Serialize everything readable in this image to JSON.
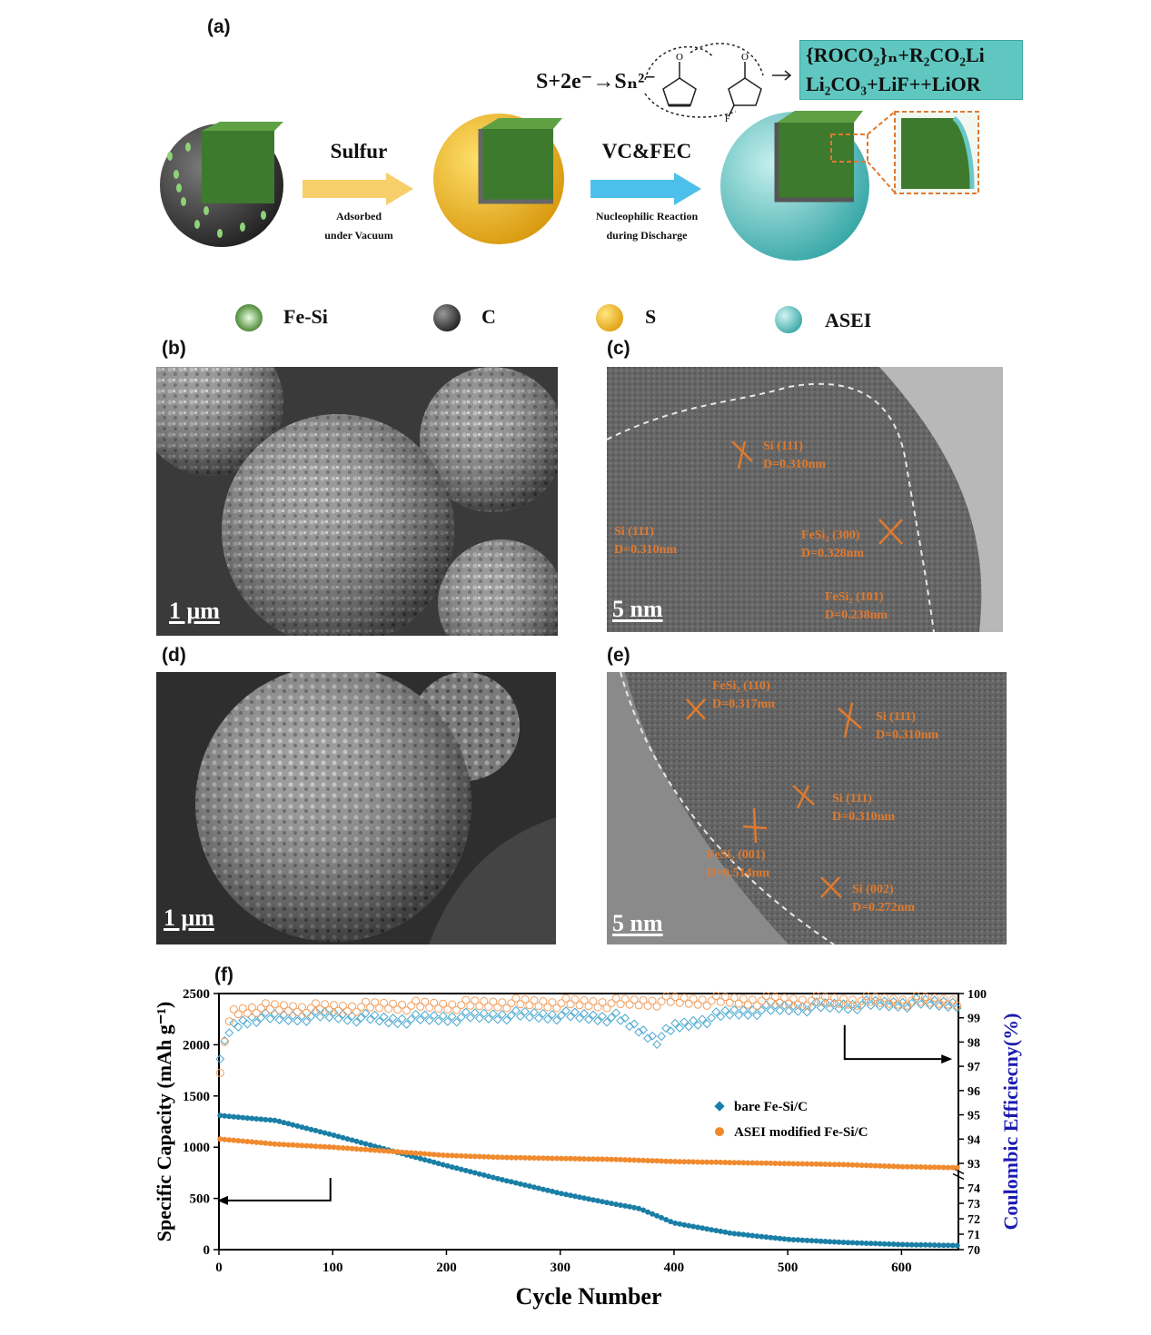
{
  "panels": {
    "a": "(a)",
    "b": "(b)",
    "c": "(c)",
    "d": "(d)",
    "e": "(e)",
    "f": "(f)"
  },
  "schematic": {
    "reaction_left": "S+2e⁻→Sₙ²⁻",
    "products_line1": "{ROCO₂}ₙ+R₂CO₂Li",
    "products_line2": "Li₂CO₃+LiF++LiOR",
    "arrow1_label": "Sulfur",
    "arrow1_sub1": "Adsorbed",
    "arrow1_sub2": "under Vacuum",
    "arrow2_label": "VC&FEC",
    "arrow2_sub1": "Nucleophilic Reaction",
    "arrow2_sub2": "during Discharge",
    "colors": {
      "carbon": "#3f3f3f",
      "sulfur": "#f2b824",
      "asei": "#6cc8c8",
      "fesi": "#4f8a3a",
      "arrow1": "#f7cf6a",
      "arrow2": "#4cc0ea"
    }
  },
  "legend": [
    {
      "label": "Fe-Si",
      "icon": "fe-si-sphere"
    },
    {
      "label": "C",
      "icon": "carbon-sphere"
    },
    {
      "label": "S",
      "icon": "sulfur-sphere"
    },
    {
      "label": "ASEI",
      "icon": "asei-sphere"
    }
  ],
  "sem": {
    "b_scale": "1 μm",
    "d_scale": "1 μm"
  },
  "tem_c": {
    "scale": "5 nm",
    "annotations": [
      "Si (111)\nD=0.310nm",
      "Si (111)\nD=0.310nm",
      "FeSi₂ (300)\nD=0.328nm",
      "FeSi₂ (101)\nD=0.238nm"
    ]
  },
  "tem_e": {
    "scale": "5 nm",
    "annotations": [
      "FeSi₂ (110)\nD=0.317nm",
      "Si (111)\nD=0.310nm",
      "Si (111)\nD=0.310nm",
      "FeSi₂ (001)\nD=0.514nm",
      "Si (002)\nD=0.272nm"
    ]
  },
  "chart_data": {
    "type": "scatter",
    "xlabel": "Cycle Number",
    "ylabel_left": "Specific Capacity (mAh g⁻¹)",
    "ylabel_right": "Coulombic Efficiecny(%)",
    "xlim": [
      0,
      650
    ],
    "xticks": [
      0,
      100,
      200,
      300,
      400,
      500,
      600
    ],
    "ylim_left": [
      0,
      2500
    ],
    "yticks_left": [
      0,
      500,
      1000,
      1500,
      2000,
      2500
    ],
    "yticks_right_upper": [
      93,
      94,
      95,
      96,
      97,
      98,
      99,
      100
    ],
    "yticks_right_lower": [
      70,
      71,
      72,
      73,
      74
    ],
    "legend_position": "center-right",
    "series": [
      {
        "name": "bare Fe-Si/C",
        "axis": "capacity",
        "color": "#1a7fa6",
        "x": [
          0,
          50,
          100,
          150,
          200,
          250,
          300,
          350,
          370,
          400,
          450,
          500,
          550,
          600,
          650
        ],
        "values": [
          1310,
          1260,
          1120,
          970,
          820,
          680,
          550,
          440,
          400,
          260,
          160,
          100,
          70,
          50,
          40
        ]
      },
      {
        "name": "ASEI modified Fe-Si/C",
        "axis": "capacity",
        "color": "#f08a2e",
        "x": [
          0,
          50,
          100,
          150,
          200,
          250,
          300,
          350,
          400,
          450,
          500,
          550,
          600,
          650
        ],
        "values": [
          1080,
          1030,
          1000,
          960,
          920,
          900,
          890,
          880,
          860,
          850,
          840,
          830,
          810,
          800
        ]
      },
      {
        "name": "bare Fe-Si/C",
        "axis": "efficiency",
        "color": "#4aa8cf",
        "x": [
          0,
          10,
          30,
          60,
          100,
          150,
          200,
          250,
          300,
          350,
          370,
          385,
          400,
          450,
          500,
          550,
          600,
          650
        ],
        "values": [
          97.2,
          98.6,
          99.0,
          99.0,
          99.1,
          98.9,
          99.0,
          99.1,
          99.1,
          99.0,
          98.5,
          98.1,
          98.6,
          99.2,
          99.4,
          99.5,
          99.6,
          99.6
        ]
      },
      {
        "name": "ASEI modified Fe-Si/C",
        "axis": "efficiency",
        "color": "#f2a060",
        "x": [
          0,
          10,
          30,
          60,
          100,
          150,
          200,
          250,
          300,
          350,
          400,
          450,
          500,
          550,
          600,
          650
        ],
        "values": [
          96.5,
          99.2,
          99.4,
          99.4,
          99.4,
          99.5,
          99.5,
          99.6,
          99.6,
          99.6,
          99.7,
          99.7,
          99.7,
          99.7,
          99.7,
          99.7
        ]
      }
    ]
  }
}
